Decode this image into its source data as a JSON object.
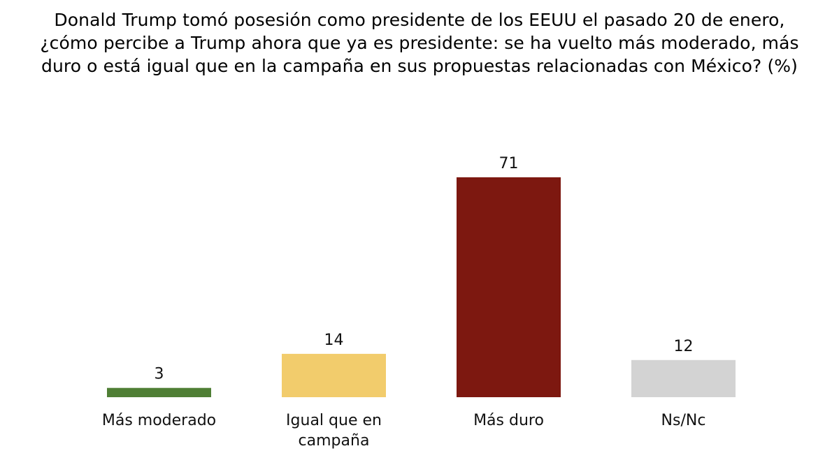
{
  "chart_data": {
    "type": "bar",
    "title_lines": [
      "Donald Trump tomó posesión como presidente de los EEUU el pasado 20 de enero,",
      "¿cómo percibe a Trump ahora que ya es presidente: se ha vuelto más moderado, más",
      "duro o está igual que en la campaña en sus propuestas relacionadas con México? (%)"
    ],
    "categories": [
      [
        "Más moderado"
      ],
      [
        "Igual que en",
        "campaña"
      ],
      [
        "Más duro"
      ],
      [
        "Ns/Nc"
      ]
    ],
    "values": [
      3,
      14,
      71,
      12
    ],
    "colors": [
      "#4f7f35",
      "#f2cc6c",
      "#7d1810",
      "#d3d3d3"
    ],
    "xlabel": "",
    "ylabel": "",
    "ylim": [
      0,
      71
    ],
    "grid": false,
    "legend": "none",
    "data_labels": true
  }
}
